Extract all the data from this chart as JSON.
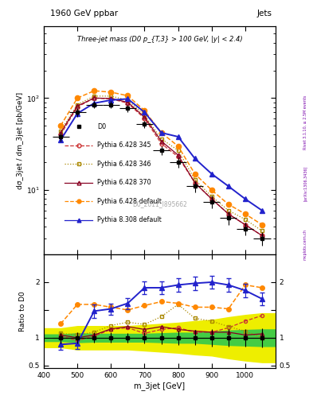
{
  "title_main": "1960 GeV ppbar",
  "title_right": "Jets",
  "annotation": "Three-jet mass (D0 p_{T,3} > 100 GeV, |y| < 2.4)",
  "watermark": "D0_2011_I895662",
  "xlabel": "m_3jet [GeV]",
  "ylabel_main": "dσ_3jet / dm_3jet [pb/GeV]",
  "ylabel_ratio": "Ratio to D0",
  "rivet_label": "Rivet 3.1.10, ≥ 2.5M events",
  "arxiv_label": "[arXiv:1306.3436]",
  "mcplots_label": "mcplots.cern.ch",
  "x_centers": [
    450,
    500,
    550,
    600,
    650,
    700,
    750,
    800,
    850,
    900,
    950,
    1000,
    1050
  ],
  "D0_xerr": [
    25,
    25,
    25,
    25,
    25,
    25,
    25,
    25,
    25,
    25,
    25,
    25,
    25
  ],
  "D0_y": [
    38,
    70,
    85,
    85,
    78,
    52,
    27,
    20,
    11,
    7.5,
    5.0,
    3.8,
    3.0
  ],
  "D0_yerr": [
    4,
    7,
    8,
    8,
    7,
    5,
    3,
    2.5,
    1.5,
    1.2,
    0.8,
    0.6,
    0.5
  ],
  "D0_stat_band_lo": [
    0.93,
    0.91,
    0.92,
    0.92,
    0.92,
    0.92,
    0.91,
    0.9,
    0.9,
    0.88,
    0.86,
    0.85,
    0.84
  ],
  "D0_stat_band_hi": [
    1.07,
    1.09,
    1.08,
    1.08,
    1.08,
    1.08,
    1.09,
    1.1,
    1.1,
    1.12,
    1.14,
    1.15,
    1.16
  ],
  "D0_syst_band_lo": [
    0.82,
    0.78,
    0.78,
    0.78,
    0.78,
    0.76,
    0.74,
    0.72,
    0.69,
    0.67,
    0.62,
    0.58,
    0.55
  ],
  "D0_syst_band_hi": [
    1.18,
    1.22,
    1.22,
    1.22,
    1.22,
    1.24,
    1.26,
    1.28,
    1.31,
    1.33,
    1.38,
    1.42,
    1.45
  ],
  "Py6_345_y": [
    40,
    80,
    100,
    98,
    88,
    60,
    32,
    23,
    12,
    8.0,
    5.5,
    4.2,
    3.2
  ],
  "Py6_346_y": [
    44,
    85,
    105,
    105,
    95,
    65,
    36,
    27,
    13,
    8.5,
    6.0,
    4.8,
    3.6
  ],
  "Py6_370_y": [
    42,
    82,
    100,
    99,
    90,
    62,
    34,
    24,
    12,
    8.0,
    5.5,
    4.2,
    3.2
  ],
  "Py6_def_y": [
    50,
    100,
    120,
    116,
    106,
    73,
    42,
    30,
    15,
    10,
    7.0,
    5.5,
    4.2
  ],
  "Py8_def_y": [
    35,
    68,
    88,
    95,
    98,
    70,
    42,
    38,
    22,
    15,
    11,
    8.0,
    6.0
  ],
  "Py6_345_ratio": [
    1.03,
    0.95,
    1.03,
    1.15,
    1.18,
    1.08,
    1.15,
    1.18,
    1.1,
    1.1,
    1.18,
    1.3,
    1.4
  ],
  "Py6_346_ratio": [
    1.08,
    1.05,
    1.1,
    1.22,
    1.28,
    1.24,
    1.38,
    1.6,
    1.35,
    1.3,
    1.2,
    1.12,
    1.0
  ],
  "Py6_370_ratio": [
    1.05,
    1.0,
    1.05,
    1.16,
    1.2,
    1.15,
    1.2,
    1.15,
    1.12,
    1.1,
    1.1,
    1.05,
    1.07
  ],
  "Py6_def_ratio": [
    1.25,
    1.6,
    1.6,
    1.55,
    1.5,
    1.58,
    1.65,
    1.62,
    1.55,
    1.55,
    1.52,
    1.95,
    1.9
  ],
  "Py8_def_ratio": [
    0.88,
    0.9,
    1.48,
    1.52,
    1.62,
    1.9,
    1.9,
    1.95,
    1.98,
    2.0,
    1.95,
    1.85,
    1.7
  ],
  "Py8_def_ratio_err": [
    0.1,
    0.1,
    0.12,
    0.1,
    0.1,
    0.12,
    0.12,
    0.12,
    0.12,
    0.12,
    0.12,
    0.12,
    0.12
  ],
  "color_D0": "#000000",
  "color_Py6_345": "#cc3333",
  "color_Py6_346": "#aa8800",
  "color_Py6_370": "#880022",
  "color_Py6_def": "#ff8800",
  "color_Py8_def": "#2222cc",
  "color_stat_band": "#44cc44",
  "color_syst_band": "#eeee00",
  "ylim_main": [
    2,
    600
  ],
  "ylim_ratio": [
    0.45,
    2.5
  ],
  "xlim": [
    400,
    1090
  ]
}
